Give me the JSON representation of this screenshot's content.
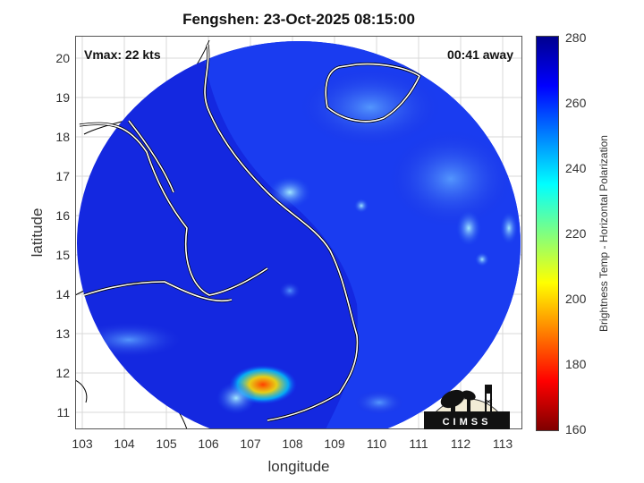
{
  "title": "Fengshen: 23-Oct-2025 08:15:00",
  "vmax": "Vmax: 22 kts",
  "time_away": "00:41 away",
  "axes": {
    "xlabel": "longitude",
    "ylabel": "latitude",
    "xticks": [
      "103",
      "104",
      "105",
      "106",
      "107",
      "108",
      "109",
      "110",
      "111",
      "112",
      "113"
    ],
    "yticks": [
      "20",
      "19",
      "18",
      "17",
      "16",
      "15",
      "14",
      "13",
      "12",
      "11"
    ],
    "xlim": [
      102.8,
      113.3
    ],
    "ylim": [
      10.6,
      20.6
    ]
  },
  "colorbar": {
    "label": "Brightness Temp - Horizontal Polarization",
    "ticks": [
      "280",
      "260",
      "240",
      "220",
      "200",
      "180",
      "160"
    ],
    "range": [
      160,
      280
    ],
    "colors": [
      "#7f0000",
      "#ff0000",
      "#ff8000",
      "#ffff00",
      "#80ff80",
      "#00ffff",
      "#0080ff",
      "#0000ff",
      "#00008f"
    ]
  },
  "logo": {
    "text": "CIMSS"
  },
  "chart_data": {
    "type": "heatmap",
    "title": "Fengshen: 23-Oct-2025 08:15:00",
    "xlabel": "longitude",
    "ylabel": "latitude",
    "xlim": [
      102.8,
      113.3
    ],
    "ylim": [
      10.6,
      20.6
    ],
    "value_range": [
      160,
      280
    ],
    "colorbar_label": "Brightness Temp - Horizontal Polarization",
    "grid": true
  }
}
